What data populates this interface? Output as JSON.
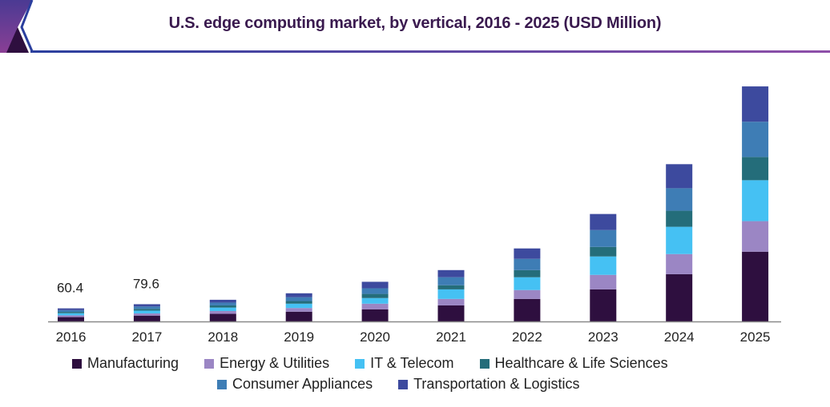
{
  "chart_data": {
    "type": "bar",
    "stacked": true,
    "title": "U.S. edge computing market, by vertical, 2016 - 2025 (USD Million)",
    "xlabel": "",
    "ylabel": "",
    "categories": [
      "2016",
      "2017",
      "2018",
      "2019",
      "2020",
      "2021",
      "2022",
      "2023",
      "2024",
      "2025"
    ],
    "series": [
      {
        "name": "Manufacturing",
        "color": "#2e0f3f",
        "values": [
          20,
          27,
          35,
          45,
          56,
          74,
          104,
          148,
          218,
          322
        ]
      },
      {
        "name": "Energy & Utilities",
        "color": "#9b86c4",
        "values": [
          8,
          10,
          13,
          17,
          26,
          30,
          41,
          67,
          93,
          141
        ]
      },
      {
        "name": "IT & Telecom",
        "color": "#45c1f3",
        "values": [
          10,
          13,
          16,
          20,
          26,
          44,
          59,
          85,
          126,
          189
        ]
      },
      {
        "name": "Healthcare & Life Sciences",
        "color": "#246d7a",
        "values": [
          6,
          8,
          10,
          12,
          19,
          19,
          33,
          44,
          74,
          107
        ]
      },
      {
        "name": "Consumer Appliances",
        "color": "#3e7db5",
        "values": [
          8.4,
          11,
          13,
          18,
          26,
          37,
          52,
          78,
          104,
          163
        ]
      },
      {
        "name": "Transportation & Logistics",
        "color": "#3d4a9e",
        "values": [
          8,
          10.6,
          13,
          18,
          30,
          33,
          48,
          74,
          111,
          163
        ]
      }
    ],
    "data_labels": [
      {
        "category": "2016",
        "text": "60.4"
      },
      {
        "category": "2017",
        "text": "79.6"
      }
    ],
    "ylim": [
      0,
      1100
    ],
    "grid": false,
    "y_axis_visible": false,
    "legend_position": "bottom"
  },
  "header": {
    "title": "U.S. edge computing market, by vertical, 2016 - 2025 (USD Million)",
    "accent_left": "#2b3f9e",
    "accent_right": "#8e4fa8"
  },
  "legend": {
    "rows": [
      [
        0,
        1,
        2,
        3
      ],
      [
        4,
        5
      ]
    ]
  }
}
